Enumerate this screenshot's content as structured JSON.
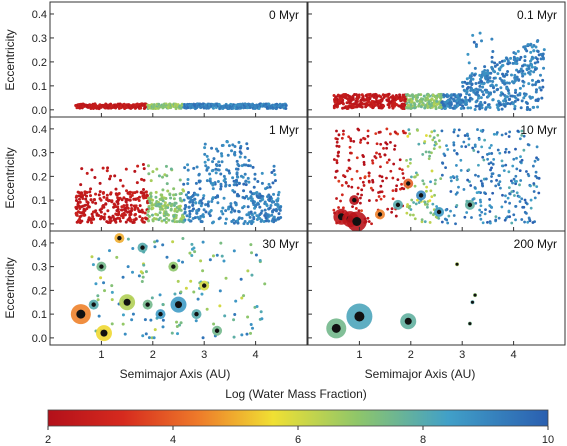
{
  "chart_data": {
    "type": "scatter",
    "description_units": {
      "x": "AU",
      "y": "eccentricity"
    },
    "xlim": [
      0,
      5
    ],
    "ylim": [
      -0.03,
      0.45
    ],
    "panels": [
      {
        "label": "0 Myr",
        "row": 0,
        "col": 0
      },
      {
        "label": "0.1 Myr",
        "row": 0,
        "col": 1
      },
      {
        "label": "1 Myr",
        "row": 1,
        "col": 0
      },
      {
        "label": "10 Myr",
        "row": 1,
        "col": 1
      },
      {
        "label": "30 Myr",
        "row": 2,
        "col": 0
      },
      {
        "label": "200 Myr",
        "row": 2,
        "col": 1
      }
    ],
    "y_ticks": [
      "0.0",
      "0.1",
      "0.2",
      "0.3",
      "0.4"
    ],
    "x_ticks": [
      "1",
      "2",
      "3",
      "4"
    ],
    "ylabel": "Eccentricity",
    "xlabel": "Semimajor Axis (AU)",
    "big_bodies": [
      {
        "panel": "10 Myr",
        "points": [
          {
            "x": 0.65,
            "y": 0.03,
            "size": "m",
            "w": 2.3
          },
          {
            "x": 0.82,
            "y": 0.02,
            "size": "m",
            "w": 2.3
          },
          {
            "x": 0.95,
            "y": 0.01,
            "size": "l",
            "w": 2.2
          },
          {
            "x": 1.4,
            "y": 0.04,
            "size": "s",
            "w": 4.5
          },
          {
            "x": 1.75,
            "y": 0.08,
            "size": "s",
            "w": 8.0
          },
          {
            "x": 2.55,
            "y": 0.05,
            "size": "s",
            "w": 8.5
          },
          {
            "x": 2.2,
            "y": 0.12,
            "size": "s",
            "w": 9.0
          },
          {
            "x": 1.95,
            "y": 0.17,
            "size": "s",
            "w": 4.0
          },
          {
            "x": 0.9,
            "y": 0.1,
            "size": "s",
            "w": 2.2
          },
          {
            "x": 3.15,
            "y": 0.08,
            "size": "s",
            "w": 7.8
          }
        ]
      },
      {
        "panel": "30 Myr",
        "points": [
          {
            "x": 0.6,
            "y": 0.1,
            "size": "l",
            "w": 4.5
          },
          {
            "x": 0.85,
            "y": 0.14,
            "size": "s",
            "w": 8.0
          },
          {
            "x": 1.05,
            "y": 0.02,
            "size": "m",
            "w": 5.5
          },
          {
            "x": 1.5,
            "y": 0.15,
            "size": "m",
            "w": 6.5
          },
          {
            "x": 1.9,
            "y": 0.14,
            "size": "s",
            "w": 7.5
          },
          {
            "x": 2.15,
            "y": 0.1,
            "size": "s",
            "w": 8.5
          },
          {
            "x": 2.5,
            "y": 0.14,
            "size": "m",
            "w": 8.5
          },
          {
            "x": 2.85,
            "y": 0.1,
            "size": "s",
            "w": 8.0
          },
          {
            "x": 3.25,
            "y": 0.03,
            "size": "s",
            "w": 7.5
          },
          {
            "x": 1.8,
            "y": 0.38,
            "size": "s",
            "w": 8.0
          },
          {
            "x": 2.4,
            "y": 0.3,
            "size": "s",
            "w": 7.0
          },
          {
            "x": 3.0,
            "y": 0.22,
            "size": "s",
            "w": 6.0
          },
          {
            "x": 1.0,
            "y": 0.3,
            "size": "s",
            "w": 7.5
          },
          {
            "x": 1.35,
            "y": 0.42,
            "size": "s",
            "w": 5.0
          }
        ]
      },
      {
        "panel": "200 Myr",
        "points": [
          {
            "x": 0.55,
            "y": 0.04,
            "size": "l",
            "w": 7.5
          },
          {
            "x": 1.0,
            "y": 0.09,
            "size": "xl",
            "w": 8.2
          },
          {
            "x": 1.95,
            "y": 0.07,
            "size": "m",
            "w": 7.8
          },
          {
            "x": 3.15,
            "y": 0.06,
            "size": "xs",
            "w": 7.5
          },
          {
            "x": 3.2,
            "y": 0.15,
            "size": "xs",
            "w": 8.0
          },
          {
            "x": 3.25,
            "y": 0.18,
            "size": "xs",
            "w": 7.0
          },
          {
            "x": 2.9,
            "y": 0.31,
            "size": "xs",
            "w": 6.5
          }
        ]
      }
    ],
    "colorbar": {
      "label": "Log (Water Mass Fraction)",
      "range": [
        2,
        10
      ],
      "ticks": [
        "2",
        "4",
        "6",
        "8",
        "10"
      ],
      "stops": [
        "#c0121a",
        "#e7762a",
        "#e8d631",
        "#7fbe5e",
        "#2f7bc4"
      ]
    },
    "grid": false
  }
}
